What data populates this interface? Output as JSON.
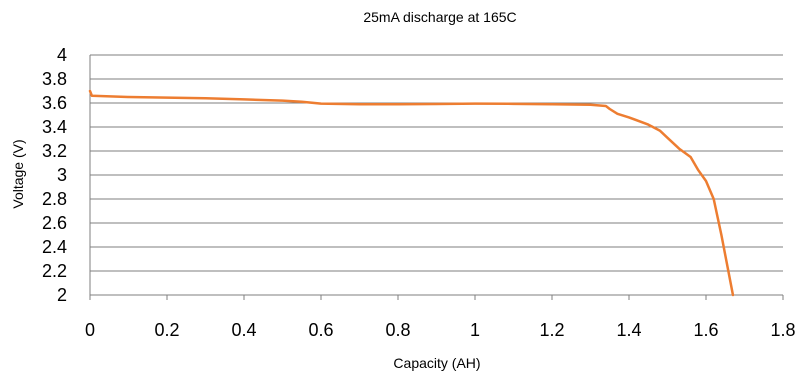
{
  "chart_data": {
    "type": "line",
    "title": "25mA discharge at 165C",
    "xlabel": "Capacity (AH)",
    "ylabel": "Voltage (V)",
    "xlim": [
      0,
      1.8
    ],
    "ylim": [
      2,
      4
    ],
    "x_ticks": [
      "0",
      "0.2",
      "0.4",
      "0.6",
      "0.8",
      "1",
      "1.2",
      "1.4",
      "1.6",
      "1.8"
    ],
    "y_ticks": [
      "2",
      "2.2",
      "2.4",
      "2.6",
      "2.8",
      "3",
      "3.2",
      "3.4",
      "3.6",
      "3.8",
      "4"
    ],
    "grid": "horizontal",
    "legend": "none",
    "colors": {
      "series": "#ed7d31",
      "grid": "#7f7f7f"
    },
    "series": [
      {
        "x": [
          0,
          0.005,
          0.1,
          0.2,
          0.3,
          0.4,
          0.5,
          0.55,
          0.6,
          0.7,
          0.8,
          0.9,
          1.0,
          1.1,
          1.2,
          1.3,
          1.34,
          1.35,
          1.37,
          1.4,
          1.45,
          1.48,
          1.5,
          1.53,
          1.56,
          1.58,
          1.6,
          1.62,
          1.64,
          1.67
        ],
        "y": [
          3.7,
          3.66,
          3.65,
          3.645,
          3.64,
          3.63,
          3.62,
          3.61,
          3.595,
          3.59,
          3.59,
          3.592,
          3.595,
          3.593,
          3.59,
          3.585,
          3.575,
          3.55,
          3.51,
          3.48,
          3.42,
          3.37,
          3.31,
          3.22,
          3.15,
          3.04,
          2.95,
          2.8,
          2.5,
          2.0
        ]
      }
    ]
  }
}
